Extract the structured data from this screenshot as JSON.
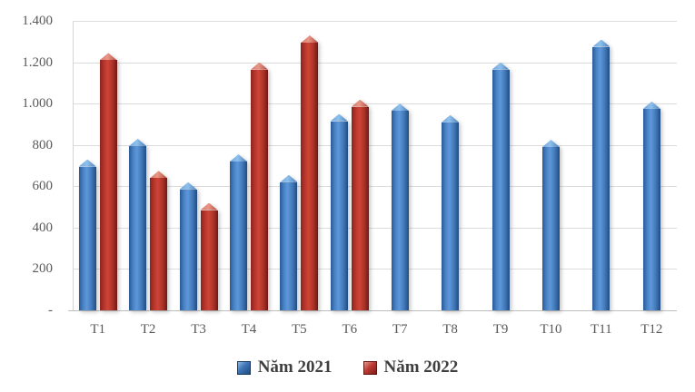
{
  "chart_data": {
    "type": "bar",
    "title": "",
    "xlabel": "",
    "ylabel": "",
    "categories": [
      "T1",
      "T2",
      "T3",
      "T4",
      "T5",
      "T6",
      "T7",
      "T8",
      "T9",
      "T10",
      "T11",
      "T12"
    ],
    "series": [
      {
        "name": "Năm 2021",
        "color": "#3d74b6",
        "values": [
          730,
          830,
          620,
          755,
          655,
          950,
          1000,
          945,
          1200,
          825,
          1310,
          1010
        ]
      },
      {
        "name": "Năm 2022",
        "color": "#be3a31",
        "values": [
          1245,
          675,
          520,
          1200,
          1330,
          1020,
          null,
          null,
          null,
          null,
          null,
          null
        ]
      }
    ],
    "ylim": [
      0,
      1400
    ],
    "ytick_values": [
      0,
      200,
      400,
      600,
      800,
      1000,
      1200,
      1400
    ],
    "ytick_labels": [
      "-",
      "200",
      "400",
      "600",
      "800",
      "1.000",
      "1.200",
      "1.400"
    ],
    "grid": true,
    "legend_position": "bottom",
    "colors": {
      "grid_line": "#dcdcdc",
      "axis_line": "#bfbfbf",
      "tick_text": "#595959",
      "legend_text": "#3f3f3f"
    }
  }
}
